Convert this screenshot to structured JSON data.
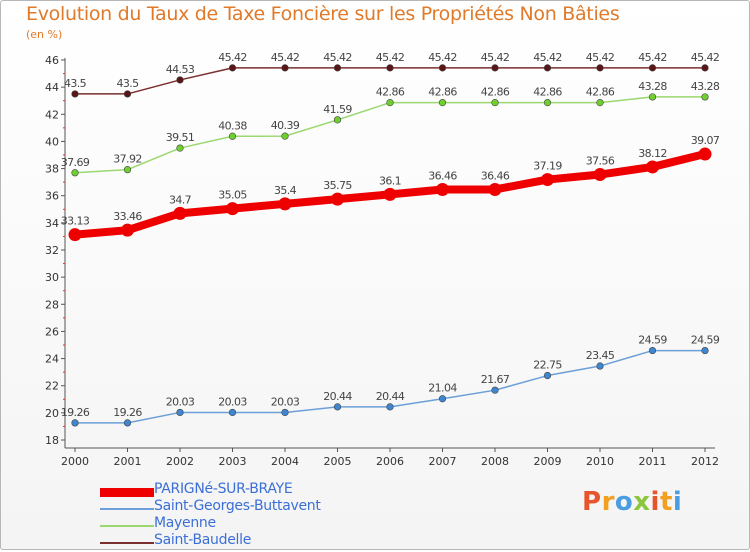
{
  "chart_data": {
    "type": "line",
    "title": "Evolution du Taux de Taxe Foncière sur les Propriétés Non Bâties",
    "subtitle": "(en %)",
    "categories": [
      "2000",
      "2001",
      "2002",
      "2003",
      "2004",
      "2005",
      "2006",
      "2007",
      "2008",
      "2009",
      "2010",
      "2011",
      "2012"
    ],
    "ylim": [
      18,
      46
    ],
    "yticks": [
      "18",
      "20",
      "22",
      "24",
      "26",
      "28",
      "30",
      "32",
      "34",
      "36",
      "38",
      "40",
      "42",
      "44",
      "46"
    ],
    "grid": false,
    "legend_position": "bottom-left",
    "series": [
      {
        "name": "PARIGNé-SUR-BRAYE",
        "color": "#ee0000",
        "marker_color": "#ee0000",
        "thick": true,
        "values": [
          33.13,
          33.46,
          34.7,
          35.05,
          35.4,
          35.75,
          36.1,
          36.46,
          36.46,
          37.19,
          37.56,
          38.12,
          39.07
        ],
        "labels": [
          "33.13",
          "33.46",
          "34.7",
          "35.05",
          "35.4",
          "35.75",
          "36.1",
          "36.46",
          "36.46",
          "37.19",
          "37.56",
          "38.12",
          "39.07"
        ]
      },
      {
        "name": "Saint-Georges-Buttavent",
        "color": "#6c9fd8",
        "marker_color": "#3f86d0",
        "thick": false,
        "values": [
          19.26,
          19.26,
          20.03,
          20.03,
          20.03,
          20.44,
          20.44,
          21.04,
          21.67,
          22.75,
          23.45,
          24.59,
          24.59
        ],
        "labels": [
          "19.26",
          "19.26",
          "20.03",
          "20.03",
          "20.03",
          "20.44",
          "20.44",
          "21.04",
          "21.67",
          "22.75",
          "23.45",
          "24.59",
          "24.59"
        ]
      },
      {
        "name": "Mayenne",
        "color": "#9bd86f",
        "marker_color": "#6fcf2f",
        "thick": false,
        "values": [
          37.69,
          37.92,
          39.51,
          40.38,
          40.39,
          41.59,
          42.86,
          42.86,
          42.86,
          42.86,
          42.86,
          43.28,
          43.28
        ],
        "labels": [
          "37.69",
          "37.92",
          "39.51",
          "40.38",
          "40.39",
          "41.59",
          "42.86",
          "42.86",
          "42.86",
          "42.86",
          "42.86",
          "43.28",
          "43.28"
        ]
      },
      {
        "name": "Saint-Baudelle",
        "color": "#7a2f2f",
        "marker_color": "#5a1616",
        "thick": false,
        "values": [
          43.5,
          43.5,
          44.53,
          45.42,
          45.42,
          45.42,
          45.42,
          45.42,
          45.42,
          45.42,
          45.42,
          45.42,
          45.42
        ],
        "labels": [
          "43.5",
          "43.5",
          "44.53",
          "45.42",
          "45.42",
          "45.42",
          "45.42",
          "45.42",
          "45.42",
          "45.42",
          "45.42",
          "45.42",
          "45.42"
        ]
      }
    ]
  },
  "brand": {
    "letters": [
      "P",
      "r",
      "o",
      "x",
      "i",
      "t",
      "i"
    ],
    "colors": [
      "#e6552b",
      "#f2a020",
      "#4a9de0",
      "#8cc63f",
      "#e6552b",
      "#f2a020",
      "#4a9de0"
    ]
  }
}
